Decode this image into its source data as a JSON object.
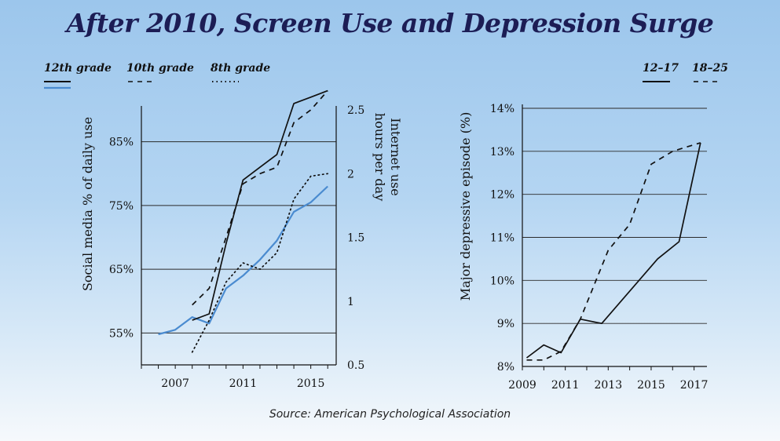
{
  "title": "After 2010, Screen Use and Depression Surge",
  "source": "Source: American Psychological Association",
  "colors": {
    "title": "#1c1d55",
    "blue": "#4a8bd0",
    "black": "#111111"
  },
  "legend_left": [
    {
      "label": "12th grade",
      "style": "solid"
    },
    {
      "label": "10th grade",
      "style": "dashed"
    },
    {
      "label": "8th grade",
      "style": "dotted"
    }
  ],
  "legend_right": [
    {
      "label": "12–17",
      "style": "solid"
    },
    {
      "label": "18–25",
      "style": "dashed"
    }
  ],
  "chart_data": [
    {
      "type": "line",
      "ylabel": "Social media % of daily use",
      "y2label_line1": "Internet use",
      "y2label_line2": "hours per day",
      "xlim": [
        2005,
        2016.5
      ],
      "ylim": [
        50,
        90
      ],
      "y2lim": [
        0.5,
        2.5
      ],
      "xticks": [
        2007,
        2011,
        2015
      ],
      "xtick_labels": [
        "2007",
        "2011",
        "2015"
      ],
      "yticks": [
        55,
        65,
        75,
        85
      ],
      "ytick_labels": [
        "55%",
        "65%",
        "75%",
        "85%"
      ],
      "y2ticks": [
        0.5,
        1,
        1.5,
        2,
        2.5
      ],
      "y2tick_labels": [
        "0.5",
        "1",
        "1.5",
        "2",
        "2.5"
      ],
      "series": [
        {
          "name": "12th grade",
          "axis": "left",
          "color": "#4a8bd0",
          "style": "solid",
          "x": [
            2006,
            2007,
            2008,
            2009,
            2010,
            2011,
            2012,
            2013,
            2014,
            2015,
            2016
          ],
          "y": [
            54.8,
            55.5,
            57.5,
            56.5,
            62,
            64,
            66.5,
            69.5,
            74,
            75.5,
            78
          ]
        },
        {
          "name": "12th grade",
          "axis": "right",
          "color": "#111111",
          "style": "solid",
          "x": [
            2008,
            2009,
            2010,
            2011,
            2012,
            2013,
            2014,
            2015,
            2016
          ],
          "y": [
            0.85,
            0.9,
            1.45,
            1.95,
            2.05,
            2.15,
            2.55,
            2.6,
            2.65
          ]
        },
        {
          "name": "10th grade",
          "axis": "right",
          "color": "#111111",
          "style": "dashed",
          "x": [
            2008,
            2009,
            2010,
            2011,
            2012,
            2013,
            2014,
            2015,
            2016
          ],
          "y": [
            0.97,
            1.1,
            1.5,
            1.92,
            2.0,
            2.05,
            2.4,
            2.5,
            2.65
          ]
        },
        {
          "name": "8th grade",
          "axis": "right",
          "color": "#111111",
          "style": "dotted",
          "x": [
            2008,
            2009,
            2010,
            2011,
            2012,
            2013,
            2014,
            2015,
            2016
          ],
          "y": [
            0.6,
            0.85,
            1.15,
            1.3,
            1.25,
            1.38,
            1.8,
            1.98,
            2.0
          ]
        }
      ]
    },
    {
      "type": "line",
      "ylabel": "Major depressive episode (%)",
      "xlim": [
        2009,
        2017.6
      ],
      "ylim": [
        8,
        14
      ],
      "xticks": [
        2009,
        2011,
        2013,
        2015,
        2017
      ],
      "xtick_labels": [
        "2009",
        "2011",
        "2013",
        "2015",
        "2017"
      ],
      "yticks": [
        8,
        9,
        10,
        11,
        12,
        13,
        14
      ],
      "ytick_labels": [
        "8%",
        "9%",
        "10%",
        "11%",
        "12%",
        "13%",
        "14%"
      ],
      "series": [
        {
          "name": "12–17",
          "color": "#111111",
          "style": "solid",
          "x": [
            2009.2,
            2010,
            2010.8,
            2011.7,
            2012.7,
            2015.3,
            2016.3,
            2017.3
          ],
          "y": [
            8.2,
            8.5,
            8.32,
            9.1,
            9.0,
            10.5,
            10.9,
            13.2
          ]
        },
        {
          "name": "18–25",
          "color": "#111111",
          "style": "dashed",
          "x": [
            2009.2,
            2010,
            2010.8,
            2011.7,
            2013,
            2014,
            2015,
            2016,
            2017.3
          ],
          "y": [
            8.15,
            8.15,
            8.35,
            9.1,
            10.7,
            11.3,
            12.7,
            13.0,
            13.2
          ]
        }
      ]
    }
  ]
}
